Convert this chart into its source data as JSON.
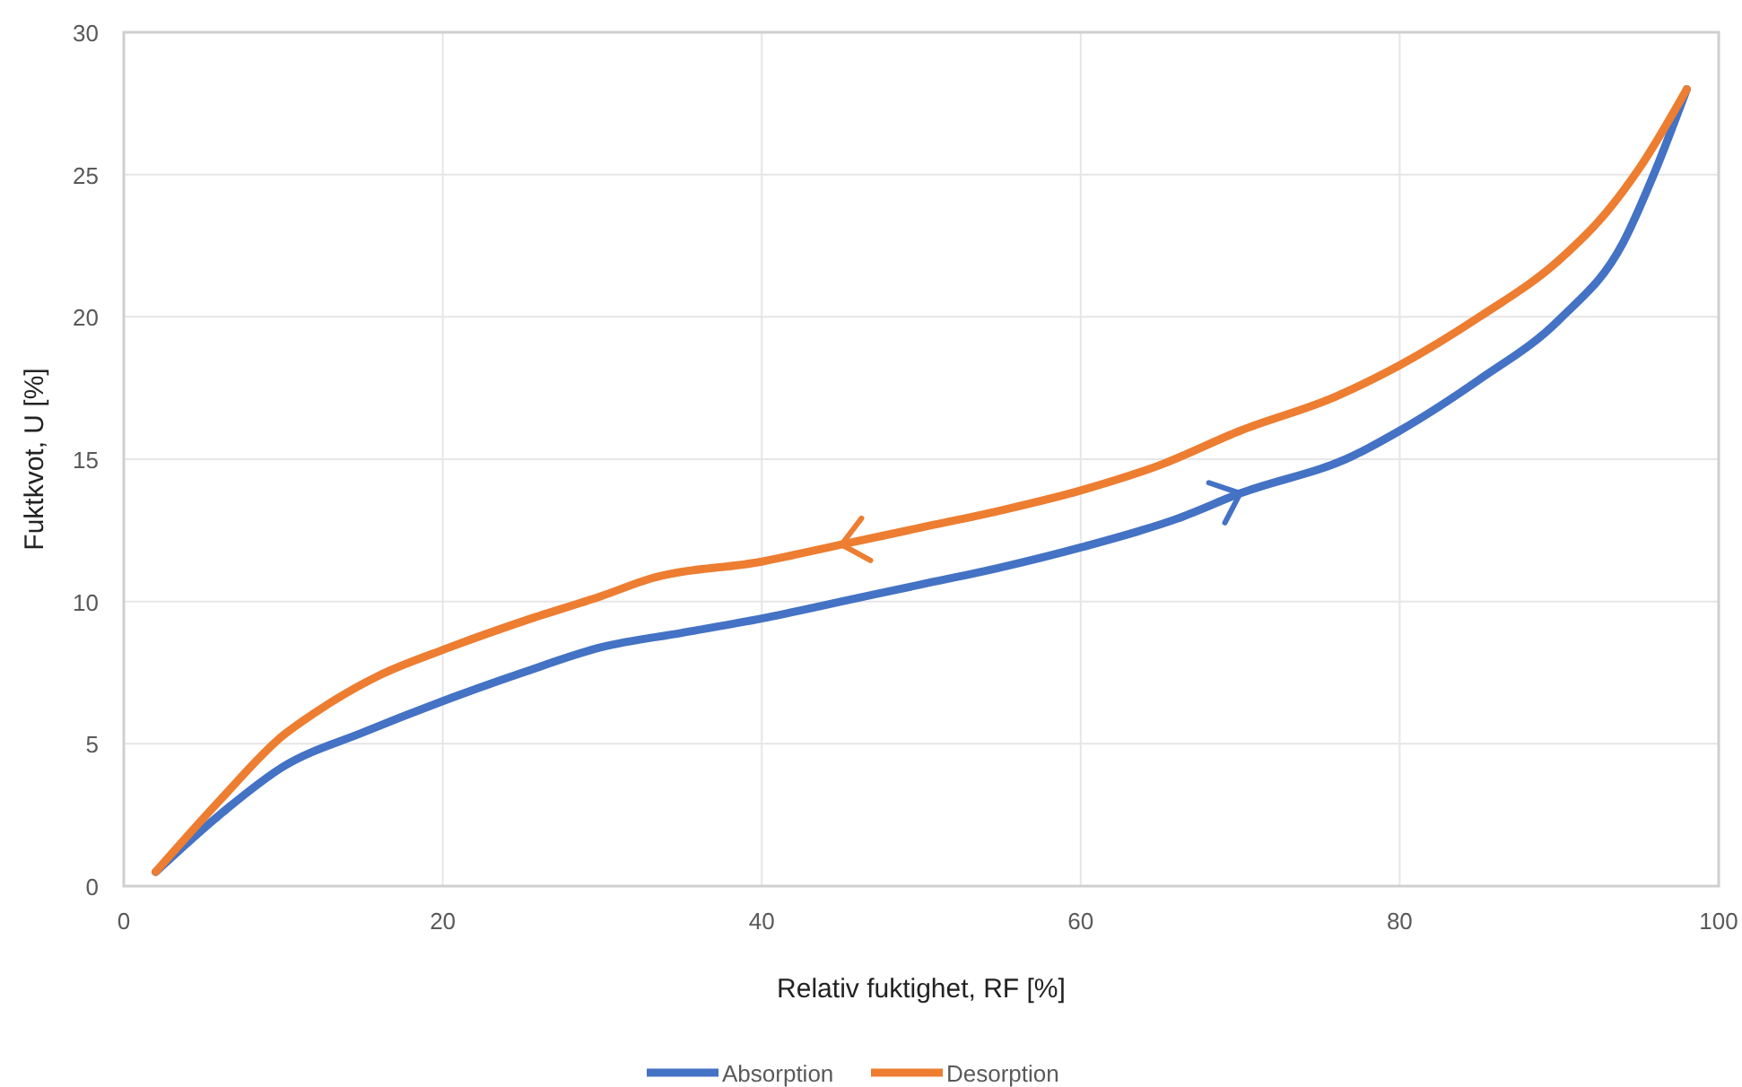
{
  "chart_data": {
    "type": "line",
    "xlabel": "Relativ fuktighet, RF [%]",
    "ylabel": "Fuktkvot, U [%]",
    "xlim": [
      0,
      100
    ],
    "xticks": [
      0,
      20,
      40,
      60,
      80,
      100
    ],
    "ylim": [
      0,
      30
    ],
    "yticks": [
      0,
      5,
      10,
      15,
      20,
      25,
      30
    ],
    "grid": true,
    "legend": "bottom",
    "marker": "none",
    "line_style": "solid",
    "series": [
      {
        "name": "Absorption",
        "color": "#4472c4",
        "x": [
          2,
          6,
          10,
          15,
          20,
          25,
          30,
          35,
          40,
          45,
          50,
          55,
          60,
          66,
          70,
          77,
          80,
          85,
          90,
          94,
          96,
          98
        ],
        "values": [
          0.5,
          2.5,
          4.2,
          5.4,
          6.5,
          7.5,
          8.4,
          8.9,
          9.4,
          10.0,
          10.6,
          11.2,
          11.9,
          12.9,
          13.8,
          15.1,
          16.0,
          17.8,
          19.9,
          22.6,
          25.1,
          28
        ]
      },
      {
        "name": "Desorption",
        "color": "#ed7d31",
        "x": [
          2,
          6,
          10,
          12,
          16,
          20,
          25,
          30,
          33,
          40,
          45,
          50,
          55,
          60,
          65,
          70,
          76,
          80,
          85,
          90,
          93,
          95,
          98
        ],
        "values": [
          0.5,
          3.0,
          5.3,
          6.1,
          7.4,
          8.3,
          9.3,
          10.2,
          10.8,
          11.4,
          12.0,
          12.6,
          13.2,
          13.9,
          14.8,
          16.0,
          17.2,
          18.3,
          20.0,
          22.0,
          23.7,
          25.2,
          28
        ]
      }
    ]
  }
}
